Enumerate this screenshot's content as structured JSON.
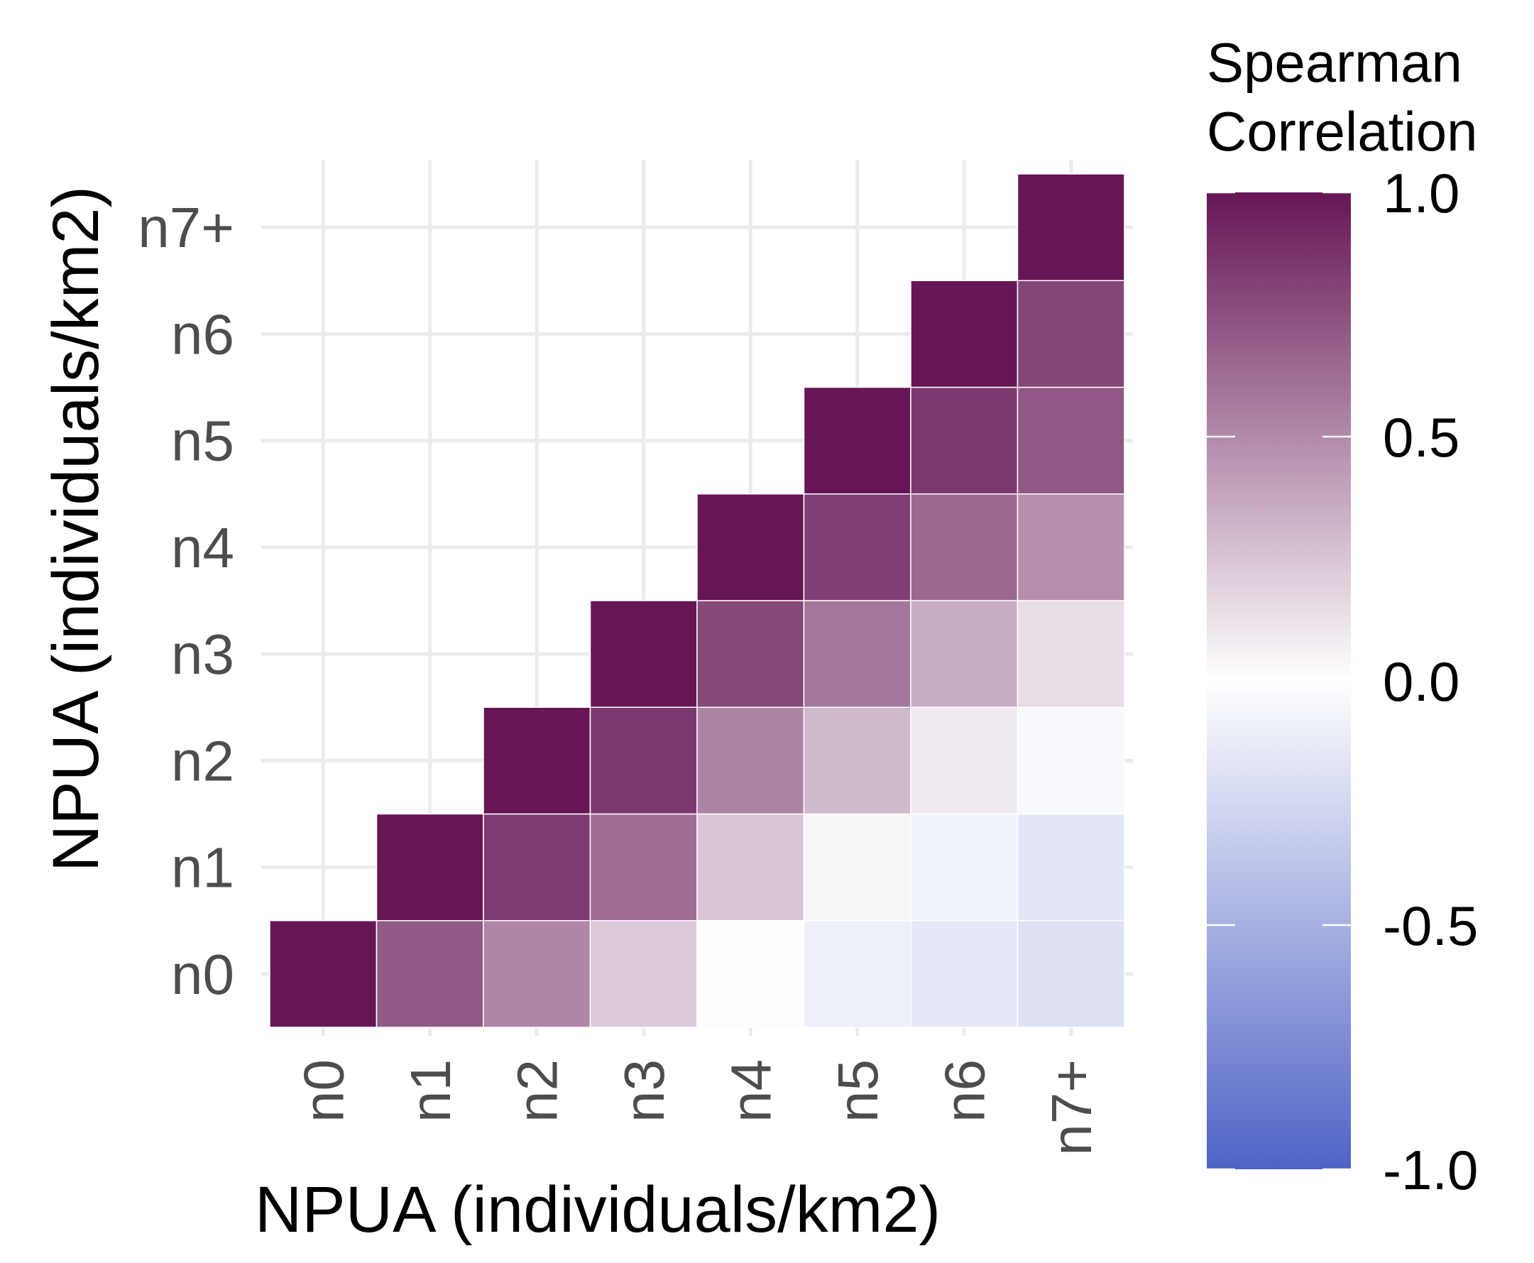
{
  "chart_data": {
    "type": "heatmap",
    "x_categories": [
      "n0",
      "n1",
      "n2",
      "n3",
      "n4",
      "n5",
      "n6",
      "n7+"
    ],
    "y_categories": [
      "n0",
      "n1",
      "n2",
      "n3",
      "n4",
      "n5",
      "n6",
      "n7+"
    ],
    "xlabel": "NPUA (individuals/km2)",
    "ylabel": "NPUA (individuals/km2)",
    "legend": {
      "title_lines": [
        "Spearman",
        "Correlation"
      ],
      "range": [
        -1.0,
        1.0
      ],
      "ticks": [
        1.0,
        0.5,
        0.0,
        -0.5,
        -1.0
      ],
      "tick_labels": [
        "1.0",
        "0.5",
        "0.0",
        "-0.5",
        "-1.0"
      ],
      "position": "right"
    },
    "color_scale": {
      "low": "#4f63c6",
      "mid": "#ffffff",
      "high": "#661655"
    },
    "cells": [
      {
        "x": "n0",
        "y": "n0",
        "value": 1.0
      },
      {
        "x": "n1",
        "y": "n0",
        "value": 0.71
      },
      {
        "x": "n2",
        "y": "n0",
        "value": 0.52
      },
      {
        "x": "n3",
        "y": "n0",
        "value": 0.23
      },
      {
        "x": "n4",
        "y": "n0",
        "value": -0.01
      },
      {
        "x": "n5",
        "y": "n0",
        "value": -0.1
      },
      {
        "x": "n6",
        "y": "n0",
        "value": -0.15
      },
      {
        "x": "n7+",
        "y": "n0",
        "value": -0.19
      },
      {
        "x": "n1",
        "y": "n1",
        "value": 1.0
      },
      {
        "x": "n2",
        "y": "n1",
        "value": 0.84
      },
      {
        "x": "n3",
        "y": "n1",
        "value": 0.63
      },
      {
        "x": "n4",
        "y": "n1",
        "value": 0.25
      },
      {
        "x": "n5",
        "y": "n1",
        "value": 0.04
      },
      {
        "x": "n6",
        "y": "n1",
        "value": -0.08
      },
      {
        "x": "n7+",
        "y": "n1",
        "value": -0.16
      },
      {
        "x": "n2",
        "y": "n2",
        "value": 1.0
      },
      {
        "x": "n3",
        "y": "n2",
        "value": 0.85
      },
      {
        "x": "n4",
        "y": "n2",
        "value": 0.53
      },
      {
        "x": "n5",
        "y": "n2",
        "value": 0.3
      },
      {
        "x": "n6",
        "y": "n2",
        "value": 0.09
      },
      {
        "x": "n7+",
        "y": "n2",
        "value": -0.04
      },
      {
        "x": "n3",
        "y": "n3",
        "value": 1.0
      },
      {
        "x": "n4",
        "y": "n3",
        "value": 0.79
      },
      {
        "x": "n5",
        "y": "n3",
        "value": 0.59
      },
      {
        "x": "n6",
        "y": "n3",
        "value": 0.35
      },
      {
        "x": "n7+",
        "y": "n3",
        "value": 0.15
      },
      {
        "x": "n4",
        "y": "n4",
        "value": 1.0
      },
      {
        "x": "n5",
        "y": "n4",
        "value": 0.83
      },
      {
        "x": "n6",
        "y": "n4",
        "value": 0.65
      },
      {
        "x": "n7+",
        "y": "n4",
        "value": 0.48
      },
      {
        "x": "n5",
        "y": "n5",
        "value": 1.0
      },
      {
        "x": "n6",
        "y": "n5",
        "value": 0.85
      },
      {
        "x": "n7+",
        "y": "n5",
        "value": 0.72
      },
      {
        "x": "n6",
        "y": "n6",
        "value": 1.0
      },
      {
        "x": "n7+",
        "y": "n6",
        "value": 0.8
      },
      {
        "x": "n7+",
        "y": "n7+",
        "value": 1.0
      }
    ]
  }
}
